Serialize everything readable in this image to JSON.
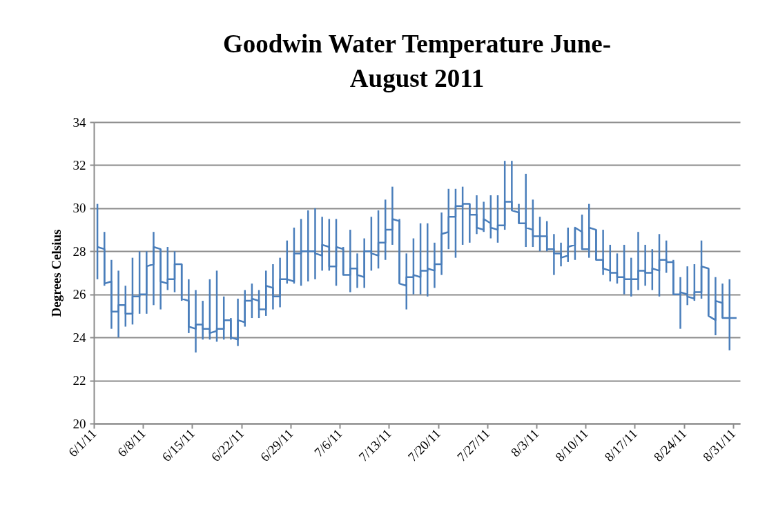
{
  "chart_data": {
    "type": "line",
    "title": "Goodwin Water Temperature June-August 2011",
    "ylabel": "Degrees Celsius",
    "grid": "y",
    "marker": "none",
    "line_style": "solid",
    "ylim": [
      20,
      34
    ],
    "yticks": [
      20,
      22,
      24,
      26,
      28,
      30,
      32,
      34
    ],
    "xlim": [
      "2011-06-01",
      "2011-09-01"
    ],
    "xticks": [
      {
        "value": "2011-06-01",
        "label": "6/1/11"
      },
      {
        "value": "2011-06-08",
        "label": "6/8/11"
      },
      {
        "value": "2011-06-15",
        "label": "6/15/11"
      },
      {
        "value": "2011-06-22",
        "label": "6/22/11"
      },
      {
        "value": "2011-06-29",
        "label": "6/29/11"
      },
      {
        "value": "2011-07-06",
        "label": "7/6/11"
      },
      {
        "value": "2011-07-13",
        "label": "7/13/11"
      },
      {
        "value": "2011-07-20",
        "label": "7/20/11"
      },
      {
        "value": "2011-07-27",
        "label": "7/27/11"
      },
      {
        "value": "2011-08-03",
        "label": "8/3/11"
      },
      {
        "value": "2011-08-10",
        "label": "8/10/11"
      },
      {
        "value": "2011-08-17",
        "label": "8/17/11"
      },
      {
        "value": "2011-08-24",
        "label": "8/24/11"
      },
      {
        "value": "2011-08-31",
        "label": "8/31/11"
      }
    ],
    "series": [
      {
        "color": "#4a7ebb",
        "x": [
          "2011-06-01T12:00",
          "2011-06-02T12:00",
          "2011-06-02T12:00",
          "2011-06-03T12:00",
          "2011-06-03T12:00",
          "2011-06-04T12:00",
          "2011-06-04T12:00",
          "2011-06-05T12:00",
          "2011-06-05T12:00",
          "2011-06-06T12:00",
          "2011-06-06T12:00",
          "2011-06-07T12:00",
          "2011-06-07T12:00",
          "2011-06-08T12:00",
          "2011-06-08T12:00",
          "2011-06-09T12:00",
          "2011-06-09T12:00",
          "2011-06-10T12:00",
          "2011-06-10T12:00",
          "2011-06-11T12:00",
          "2011-06-11T12:00",
          "2011-06-12T12:00",
          "2011-06-12T12:00",
          "2011-06-13T12:00",
          "2011-06-13T12:00",
          "2011-06-14T12:00",
          "2011-06-14T12:00",
          "2011-06-15T12:00",
          "2011-06-15T12:00",
          "2011-06-16T12:00",
          "2011-06-16T12:00",
          "2011-06-17T12:00",
          "2011-06-17T12:00",
          "2011-06-18T12:00",
          "2011-06-18T12:00",
          "2011-06-19T12:00",
          "2011-06-19T12:00",
          "2011-06-20T12:00",
          "2011-06-20T12:00",
          "2011-06-21T12:00",
          "2011-06-21T12:00",
          "2011-06-22T12:00",
          "2011-06-22T12:00",
          "2011-06-23T12:00",
          "2011-06-23T12:00",
          "2011-06-24T12:00",
          "2011-06-24T12:00",
          "2011-06-25T12:00",
          "2011-06-25T12:00",
          "2011-06-26T12:00",
          "2011-06-26T12:00",
          "2011-06-27T12:00",
          "2011-06-27T12:00",
          "2011-06-28T12:00",
          "2011-06-28T12:00",
          "2011-06-29T12:00",
          "2011-06-29T12:00",
          "2011-06-30T12:00",
          "2011-06-30T12:00",
          "2011-07-01T12:00",
          "2011-07-01T12:00",
          "2011-07-02T12:00",
          "2011-07-02T12:00",
          "2011-07-03T12:00",
          "2011-07-03T12:00",
          "2011-07-04T12:00",
          "2011-07-04T12:00",
          "2011-07-05T12:00",
          "2011-07-05T12:00",
          "2011-07-06T12:00",
          "2011-07-06T12:00",
          "2011-07-07T12:00",
          "2011-07-07T12:00",
          "2011-07-08T12:00",
          "2011-07-08T12:00",
          "2011-07-09T12:00",
          "2011-07-09T12:00",
          "2011-07-10T12:00",
          "2011-07-10T12:00",
          "2011-07-11T12:00",
          "2011-07-11T12:00",
          "2011-07-12T12:00",
          "2011-07-12T12:00",
          "2011-07-13T12:00",
          "2011-07-13T12:00",
          "2011-07-14T12:00",
          "2011-07-14T12:00",
          "2011-07-15T12:00",
          "2011-07-15T12:00",
          "2011-07-16T12:00",
          "2011-07-16T12:00",
          "2011-07-17T12:00",
          "2011-07-17T12:00",
          "2011-07-18T12:00",
          "2011-07-18T12:00",
          "2011-07-19T12:00",
          "2011-07-19T12:00",
          "2011-07-20T12:00",
          "2011-07-20T12:00",
          "2011-07-21T12:00",
          "2011-07-21T12:00",
          "2011-07-22T12:00",
          "2011-07-22T12:00",
          "2011-07-23T12:00",
          "2011-07-23T12:00",
          "2011-07-24T12:00",
          "2011-07-24T12:00",
          "2011-07-25T12:00",
          "2011-07-25T12:00",
          "2011-07-26T12:00",
          "2011-07-26T12:00",
          "2011-07-27T12:00",
          "2011-07-27T12:00",
          "2011-07-28T12:00",
          "2011-07-28T12:00",
          "2011-07-29T12:00",
          "2011-07-29T12:00",
          "2011-07-30T12:00",
          "2011-07-30T12:00",
          "2011-07-31T12:00",
          "2011-07-31T12:00",
          "2011-08-01T12:00",
          "2011-08-01T12:00",
          "2011-08-02T12:00",
          "2011-08-02T12:00",
          "2011-08-03T12:00",
          "2011-08-03T12:00",
          "2011-08-04T12:00",
          "2011-08-04T12:00",
          "2011-08-05T12:00",
          "2011-08-05T12:00",
          "2011-08-06T12:00",
          "2011-08-06T12:00",
          "2011-08-07T12:00",
          "2011-08-07T12:00",
          "2011-08-08T12:00",
          "2011-08-08T12:00",
          "2011-08-09T12:00",
          "2011-08-09T12:00",
          "2011-08-10T12:00",
          "2011-08-10T12:00",
          "2011-08-11T12:00",
          "2011-08-11T12:00",
          "2011-08-12T12:00",
          "2011-08-12T12:00",
          "2011-08-13T12:00",
          "2011-08-13T12:00",
          "2011-08-14T12:00",
          "2011-08-14T12:00",
          "2011-08-15T12:00",
          "2011-08-15T12:00",
          "2011-08-16T12:00",
          "2011-08-16T12:00",
          "2011-08-17T12:00",
          "2011-08-17T12:00",
          "2011-08-18T12:00",
          "2011-08-18T12:00",
          "2011-08-19T12:00",
          "2011-08-19T12:00",
          "2011-08-20T12:00",
          "2011-08-20T12:00",
          "2011-08-21T12:00",
          "2011-08-21T12:00",
          "2011-08-22T12:00",
          "2011-08-22T12:00",
          "2011-08-23T12:00",
          "2011-08-23T12:00",
          "2011-08-24T12:00",
          "2011-08-24T12:00",
          "2011-08-25T12:00",
          "2011-08-25T12:00",
          "2011-08-26T12:00",
          "2011-08-26T12:00",
          "2011-08-27T12:00",
          "2011-08-27T12:00",
          "2011-08-28T12:00",
          "2011-08-28T12:00",
          "2011-08-29T12:00",
          "2011-08-29T12:00",
          "2011-08-30T12:00",
          "2011-08-30T12:00",
          "2011-08-31T12:00"
        ],
        "values": [
          28.2,
          28.1,
          26.5,
          26.6,
          25.2,
          25.2,
          25.5,
          25.5,
          25.1,
          25.1,
          25.9,
          25.9,
          26.0,
          26.0,
          27.3,
          27.4,
          28.2,
          28.1,
          26.6,
          26.5,
          26.7,
          26.7,
          27.4,
          27.4,
          25.8,
          25.7,
          24.5,
          24.4,
          24.6,
          24.6,
          24.4,
          24.4,
          24.2,
          24.3,
          24.4,
          24.4,
          24.8,
          24.8,
          24.0,
          23.9,
          24.8,
          24.7,
          25.7,
          25.7,
          25.8,
          25.7,
          25.3,
          25.3,
          26.4,
          26.3,
          25.9,
          25.9,
          26.7,
          26.7,
          26.7,
          26.6,
          27.9,
          27.9,
          28.0,
          28.0,
          28.0,
          28.0,
          27.9,
          27.8,
          28.3,
          28.2,
          27.3,
          27.3,
          28.2,
          28.1,
          26.9,
          26.9,
          27.2,
          27.2,
          26.9,
          26.8,
          28.0,
          28.0,
          27.9,
          27.8,
          28.4,
          28.4,
          29.0,
          29.0,
          29.5,
          29.4,
          26.5,
          26.4,
          26.8,
          26.8,
          26.9,
          26.8,
          27.1,
          27.1,
          27.2,
          27.1,
          27.4,
          27.4,
          28.8,
          28.9,
          29.6,
          29.6,
          30.1,
          30.1,
          30.2,
          30.2,
          29.7,
          29.7,
          29.1,
          29.0,
          29.5,
          29.3,
          29.1,
          29.0,
          29.2,
          29.2,
          30.3,
          30.3,
          29.9,
          29.8,
          29.3,
          29.3,
          29.1,
          29.0,
          28.7,
          28.7,
          28.7,
          28.7,
          28.1,
          28.1,
          27.9,
          27.9,
          27.7,
          27.8,
          28.2,
          28.3,
          29.1,
          28.9,
          28.1,
          28.1,
          29.1,
          29.0,
          27.6,
          27.6,
          27.2,
          27.1,
          27.0,
          27.0,
          26.8,
          26.8,
          26.7,
          26.7,
          26.7,
          26.7,
          27.1,
          27.1,
          27.0,
          27.0,
          27.2,
          27.1,
          27.6,
          27.6,
          27.5,
          27.5,
          26.0,
          26.0,
          26.1,
          26.0,
          25.9,
          25.8,
          26.1,
          26.1,
          27.3,
          27.2,
          25.0,
          24.8,
          25.7,
          25.6,
          24.9,
          24.9,
          24.9,
          24.9
        ],
        "errors": [
          [
            26.7,
            30.2
          ],
          [
            26.4,
            28.9
          ],
          null,
          [
            24.4,
            27.6
          ],
          null,
          [
            24.0,
            27.1
          ],
          null,
          [
            24.5,
            26.4
          ],
          null,
          [
            24.6,
            27.7
          ],
          null,
          [
            25.1,
            28.0
          ],
          null,
          [
            25.1,
            28.0
          ],
          null,
          [
            25.5,
            28.9
          ],
          null,
          [
            25.3,
            28.1
          ],
          null,
          [
            26.2,
            28.2
          ],
          null,
          [
            26.1,
            28.0
          ],
          null,
          [
            25.7,
            27.4
          ],
          null,
          [
            24.2,
            26.7
          ],
          null,
          [
            23.3,
            26.2
          ],
          null,
          [
            23.9,
            25.7
          ],
          null,
          [
            23.9,
            26.7
          ],
          null,
          [
            23.8,
            27.1
          ],
          null,
          [
            23.9,
            25.9
          ],
          null,
          [
            23.9,
            24.9
          ],
          null,
          [
            23.6,
            25.8
          ],
          null,
          [
            24.5,
            26.2
          ],
          null,
          [
            24.9,
            26.5
          ],
          null,
          [
            24.9,
            26.2
          ],
          null,
          [
            25.0,
            27.1
          ],
          null,
          [
            25.3,
            27.4
          ],
          null,
          [
            25.4,
            27.7
          ],
          null,
          [
            26.5,
            28.5
          ],
          null,
          [
            26.5,
            29.1
          ],
          null,
          [
            26.4,
            29.5
          ],
          null,
          [
            26.6,
            29.9
          ],
          null,
          [
            26.7,
            30.0
          ],
          null,
          [
            27.1,
            29.6
          ],
          null,
          [
            27.1,
            29.5
          ],
          null,
          [
            26.4,
            29.5
          ],
          null,
          [
            26.9,
            28.2
          ],
          null,
          [
            26.1,
            29.0
          ],
          null,
          [
            26.3,
            27.9
          ],
          null,
          [
            26.3,
            28.6
          ],
          null,
          [
            27.1,
            29.6
          ],
          null,
          [
            27.2,
            29.9
          ],
          null,
          [
            27.6,
            30.4
          ],
          null,
          [
            28.3,
            31.0
          ],
          null,
          [
            26.5,
            29.5
          ],
          null,
          [
            25.3,
            27.9
          ],
          null,
          [
            26.0,
            28.6
          ],
          null,
          [
            26.0,
            29.3
          ],
          null,
          [
            25.9,
            29.3
          ],
          null,
          [
            26.3,
            28.4
          ],
          null,
          [
            26.9,
            29.8
          ],
          null,
          [
            28.1,
            30.9
          ],
          null,
          [
            27.7,
            30.9
          ],
          null,
          [
            28.3,
            31.0
          ],
          null,
          [
            28.4,
            30.2
          ],
          null,
          [
            28.8,
            30.6
          ],
          null,
          [
            28.9,
            30.3
          ],
          null,
          [
            28.6,
            30.6
          ],
          null,
          [
            28.4,
            30.6
          ],
          null,
          [
            29.0,
            32.2
          ],
          null,
          [
            29.9,
            32.2
          ],
          null,
          [
            29.3,
            30.2
          ],
          null,
          [
            28.2,
            31.6
          ],
          null,
          [
            28.2,
            30.4
          ],
          null,
          [
            28.0,
            29.6
          ],
          null,
          [
            28.0,
            29.4
          ],
          null,
          [
            26.9,
            28.8
          ],
          null,
          [
            27.3,
            28.4
          ],
          null,
          [
            27.5,
            29.1
          ],
          null,
          [
            27.6,
            29.1
          ],
          null,
          [
            28.1,
            29.7
          ],
          null,
          [
            27.7,
            30.2
          ],
          null,
          [
            27.6,
            29.0
          ],
          null,
          [
            26.9,
            29.0
          ],
          null,
          [
            26.6,
            28.3
          ],
          null,
          [
            26.5,
            27.9
          ],
          null,
          [
            26.0,
            28.3
          ],
          null,
          [
            25.9,
            27.7
          ],
          null,
          [
            26.2,
            28.9
          ],
          null,
          [
            26.4,
            28.3
          ],
          null,
          [
            26.2,
            28.1
          ],
          null,
          [
            25.9,
            28.8
          ],
          null,
          [
            27.0,
            28.5
          ],
          null,
          [
            26.0,
            27.6
          ],
          null,
          [
            24.4,
            26.8
          ],
          null,
          [
            25.5,
            27.3
          ],
          null,
          [
            25.7,
            27.4
          ],
          null,
          [
            25.8,
            28.5
          ],
          null,
          [
            25.0,
            27.2
          ],
          null,
          [
            24.1,
            26.8
          ],
          null,
          [
            24.9,
            26.5
          ],
          null,
          [
            23.4,
            26.7
          ],
          null,
          null
        ]
      }
    ]
  }
}
